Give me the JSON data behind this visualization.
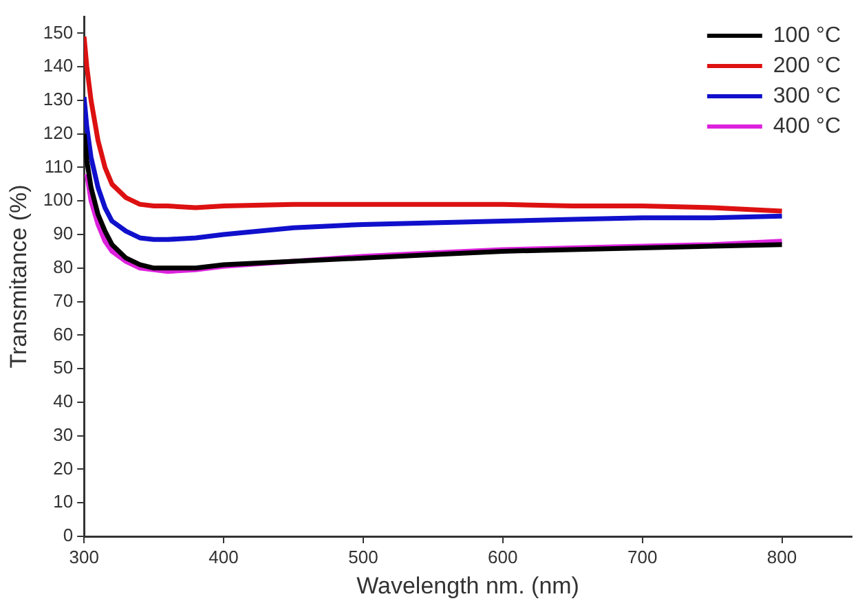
{
  "chart_data": {
    "type": "line",
    "xlabel": "Wavelength nm. (nm)",
    "ylabel": "Transmitance (%)",
    "x": [
      300,
      302,
      305,
      310,
      315,
      320,
      330,
      340,
      350,
      360,
      380,
      400,
      450,
      500,
      550,
      600,
      650,
      700,
      750,
      800
    ],
    "series": [
      {
        "name": "100 °C",
        "color": "#000000",
        "values": [
          120,
          112,
          104,
          96,
          91,
          87,
          83,
          81,
          80,
          80,
          80,
          81,
          82,
          83,
          84,
          85,
          85.5,
          86,
          86.5,
          87
        ]
      },
      {
        "name": "200 °C",
        "color": "#dd1111",
        "values": [
          149,
          140,
          130,
          118,
          110,
          105,
          101,
          99,
          98.5,
          98.5,
          98,
          98.5,
          99,
          99,
          99,
          99,
          98.5,
          98.5,
          98,
          97
        ]
      },
      {
        "name": "300 °C",
        "color": "#1010cc",
        "values": [
          131,
          122,
          113,
          104,
          98,
          94,
          91,
          89,
          88.5,
          88.5,
          89,
          90,
          92,
          93,
          93.5,
          94,
          94.5,
          95,
          95,
          95.5
        ]
      },
      {
        "name": "400 °C",
        "color": "#dd22dd",
        "values": [
          null,
          108,
          100,
          93,
          88,
          85,
          82,
          80,
          79.5,
          79,
          79.5,
          80.5,
          82,
          83.5,
          84.5,
          85.5,
          86,
          86.5,
          87,
          88
        ]
      }
    ],
    "xlim": [
      300,
      850
    ],
    "xticks": [
      300,
      400,
      500,
      600,
      700,
      800
    ],
    "ylim": [
      0,
      155
    ],
    "yticks": [
      0,
      10,
      20,
      30,
      40,
      50,
      60,
      70,
      80,
      90,
      100,
      110,
      120,
      130,
      140,
      150
    ],
    "grid": false,
    "legend": "top right",
    "marker": "none",
    "line_style": "solid"
  }
}
